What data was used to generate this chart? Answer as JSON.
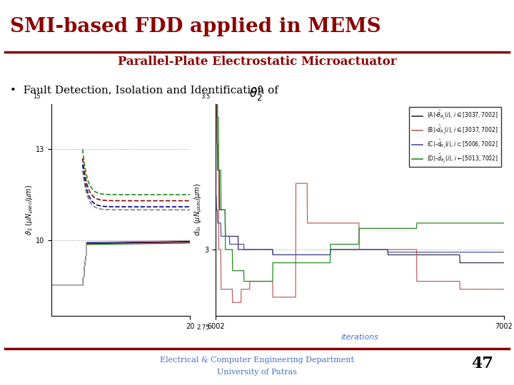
{
  "title_main": "SMI-based FDD applied in MEMS",
  "title_sub": "Parallel-Plate Electrostatic Microactuator",
  "bullet_text": "Fault Detection, Isolation and Identification of ",
  "theta_symbol": "$\\theta_2^0$",
  "footer_line1": "Electrical & Computer Engineering Department",
  "footer_line2": "University of Patras",
  "slide_number": "47",
  "bg_color": "#ffffff",
  "title_color": "#8B0000",
  "sub_title_color": "#8B0000",
  "separator_color": "#8B0000",
  "footer_color": "#4472c4",
  "text_color": "#000000",
  "left_plot": {
    "ylabel": "$\\vartheta_2$ ($\\mu N_{\\mu sec}/\\mu m$)",
    "yticks": [
      10,
      13
    ],
    "xtick": 20,
    "xlim": [
      0,
      20
    ],
    "ylim_bottom": 7.5,
    "ylim_top": 14.5,
    "dotted_y1": 13,
    "dotted_y2": 10,
    "colors_dashed": [
      "#228B22",
      "#8B0000",
      "#00008B",
      "#808080"
    ],
    "colors_solid": [
      "#228B22",
      "#8B0000",
      "#00008B",
      "#C0C0C0"
    ]
  },
  "right_plot": {
    "xlabel": "iterations",
    "ylabel": "$d_0$, ($\\mu N_{\\mu sec}/\\mu m$)",
    "xlim": [
      6002,
      7002
    ],
    "ylim": [
      2.75,
      3.55
    ],
    "ytick_3": 3,
    "dotted_y": 3.0,
    "col_A": "#2F2F4F",
    "col_B": "#C06060",
    "col_C": "#5050A0",
    "col_D": "#228B22",
    "legend_labels": [
      "(A)-$\\hat{\\theta}_{\\theta_1}(i)$, $i \\in [3037, 7002]$",
      "(B)-$\\hat{d}_{\\theta_1}(i)$, $i \\in [3037, 7002]$",
      "(C)-$\\hat{d}_{\\theta_1}(i)$, $i \\subset [5006, 7002]$",
      "(D)-$\\hat{d}_{\\theta_1}(i)$, $i \\leftarrow [5013, 7002]$"
    ]
  }
}
